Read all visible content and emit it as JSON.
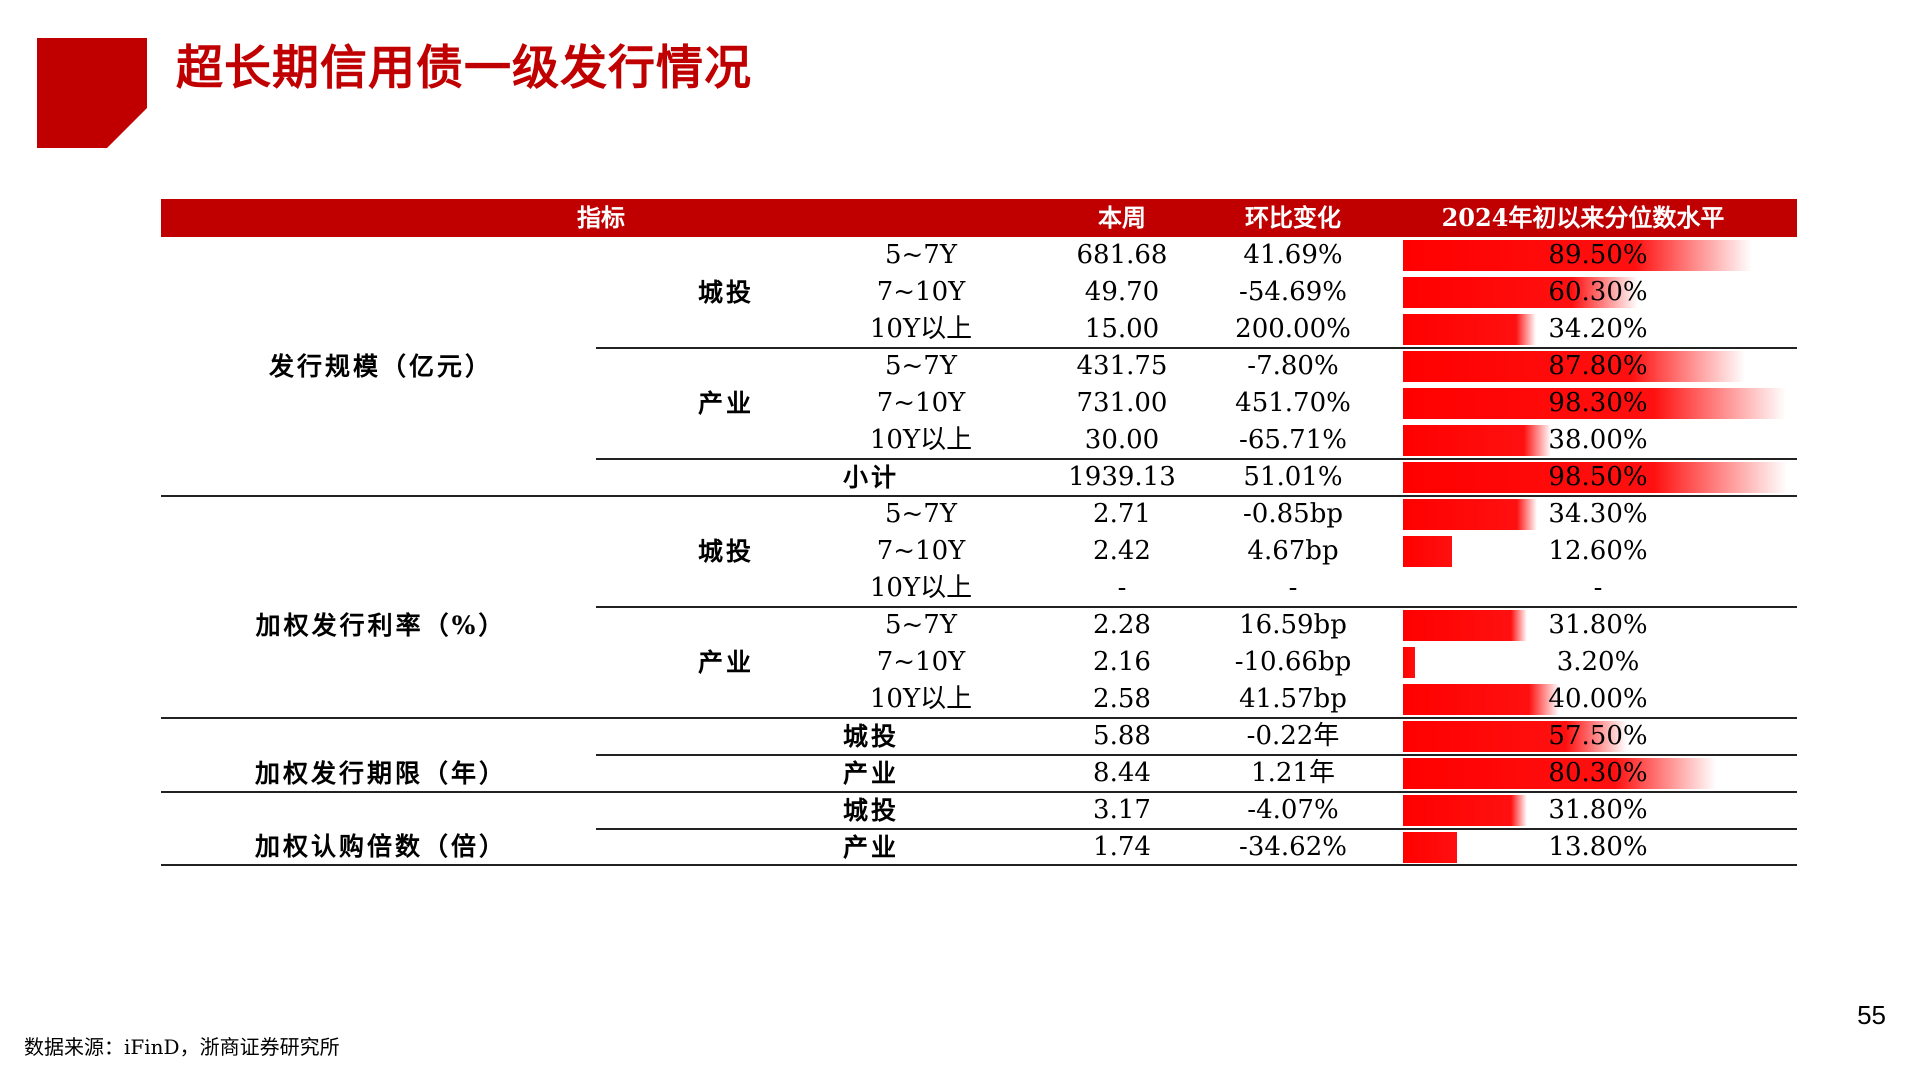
{
  "title": "超长期信用债一级发行情况",
  "header": {
    "indicator": "指标",
    "week": "本周",
    "change": "环比变化",
    "pct": "2024年初以来分位数水平"
  },
  "groups": {
    "scale": "发行规模（亿元）",
    "rate": "加权发行利率（%）",
    "term": "加权发行期限（年）",
    "subscription": "加权认购倍数（倍）"
  },
  "subgroups": {
    "chengtou": "城投",
    "chanye": "产业"
  },
  "rows": [
    {
      "sub": "5~7Y",
      "week": "681.68",
      "change": "41.69%",
      "pct_label": "89.50%",
      "pct": 89.5
    },
    {
      "sub": "7~10Y",
      "week": "49.70",
      "change": "-54.69%",
      "pct_label": "60.30%",
      "pct": 60.3
    },
    {
      "sub": "10Y以上",
      "week": "15.00",
      "change": "200.00%",
      "pct_label": "34.20%",
      "pct": 34.2
    },
    {
      "sub": "5~7Y",
      "week": "431.75",
      "change": "-7.80%",
      "pct_label": "87.80%",
      "pct": 87.8
    },
    {
      "sub": "7~10Y",
      "week": "731.00",
      "change": "451.70%",
      "pct_label": "98.30%",
      "pct": 98.3
    },
    {
      "sub": "10Y以上",
      "week": "30.00",
      "change": "-65.71%",
      "pct_label": "38.00%",
      "pct": 38.0
    },
    {
      "sub": "小计",
      "week": "1939.13",
      "change": "51.01%",
      "pct_label": "98.50%",
      "pct": 98.5
    },
    {
      "sub": "5~7Y",
      "week": "2.71",
      "change": "-0.85bp",
      "pct_label": "34.30%",
      "pct": 34.3
    },
    {
      "sub": "7~10Y",
      "week": "2.42",
      "change": "4.67bp",
      "pct_label": "12.60%",
      "pct": 12.6
    },
    {
      "sub": "10Y以上",
      "week": "-",
      "change": "-",
      "pct_label": "-",
      "pct": 0
    },
    {
      "sub": "5~7Y",
      "week": "2.28",
      "change": "16.59bp",
      "pct_label": "31.80%",
      "pct": 31.8
    },
    {
      "sub": "7~10Y",
      "week": "2.16",
      "change": "-10.66bp",
      "pct_label": "3.20%",
      "pct": 3.2
    },
    {
      "sub": "10Y以上",
      "week": "2.58",
      "change": "41.57bp",
      "pct_label": "40.00%",
      "pct": 40.0
    },
    {
      "sub": "城投",
      "week": "5.88",
      "change": "-0.22年",
      "pct_label": "57.50%",
      "pct": 57.5
    },
    {
      "sub": "产业",
      "week": "8.44",
      "change": "1.21年",
      "pct_label": "80.30%",
      "pct": 80.3
    },
    {
      "sub": "城投",
      "week": "3.17",
      "change": "-4.07%",
      "pct_label": "31.80%",
      "pct": 31.8
    },
    {
      "sub": "产业",
      "week": "1.74",
      "change": "-34.62%",
      "pct_label": "13.80%",
      "pct": 13.8
    }
  ],
  "page_number": "55",
  "source": "数据来源：iFinD，浙商证券研究所"
}
